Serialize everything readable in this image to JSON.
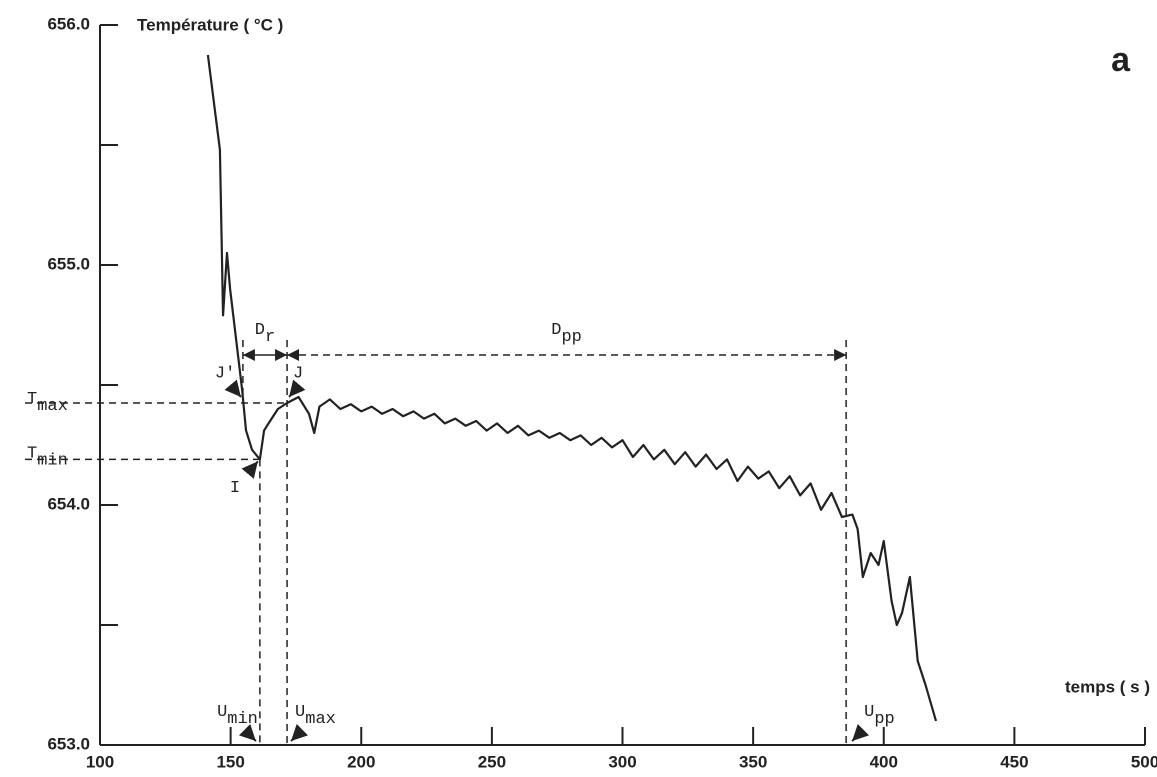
{
  "chart_data": {
    "type": "line",
    "title": "a",
    "y_label": "Température ( °C )",
    "x_label": "temps ( s )",
    "xlim": [
      100,
      500
    ],
    "xticks": [
      100,
      150,
      200,
      250,
      300,
      350,
      400,
      450,
      500
    ],
    "ylim": [
      653.0,
      656.0
    ],
    "yticks": [
      {
        "value": 653.0,
        "label": "653.0"
      },
      {
        "value": 654.0,
        "label": "654.0"
      },
      {
        "value": 655.0,
        "label": "655.0"
      },
      {
        "value": 656.0,
        "label": "656.0"
      }
    ],
    "yminor_ticks": [
      653.5,
      654.5,
      655.5
    ],
    "color": "#222222",
    "x": [
      141.3,
      145.9,
      147.1,
      148.6,
      149.8,
      152.1,
      154.4,
      155.9,
      158.2,
      161.2,
      162.8,
      165.1,
      168.1,
      171.6,
      176,
      180,
      182,
      184,
      188,
      192,
      196,
      200,
      204,
      208,
      212,
      216,
      220,
      224,
      228,
      232,
      236,
      240,
      244,
      248,
      252,
      256,
      260,
      264,
      268,
      272,
      276,
      280,
      284,
      288,
      292,
      296,
      300,
      304,
      308,
      312,
      316,
      320,
      324,
      328,
      332,
      336,
      340,
      344,
      348,
      352,
      356,
      360,
      364,
      368,
      372,
      376,
      380,
      384,
      388,
      390,
      392,
      395,
      398,
      400,
      403,
      405,
      407,
      410,
      413,
      416,
      420
    ],
    "values": [
      655.875,
      655.48,
      654.79,
      655.05,
      654.9,
      654.69,
      654.48,
      654.31,
      654.23,
      654.19,
      654.31,
      654.35,
      654.4,
      654.425,
      654.45,
      654.38,
      654.3,
      654.41,
      654.44,
      654.4,
      654.42,
      654.39,
      654.41,
      654.38,
      654.4,
      654.37,
      654.39,
      654.36,
      654.38,
      654.34,
      654.36,
      654.33,
      654.35,
      654.31,
      654.34,
      654.3,
      654.33,
      654.29,
      654.31,
      654.28,
      654.3,
      654.27,
      654.29,
      654.25,
      654.28,
      654.24,
      654.27,
      654.2,
      654.25,
      654.19,
      654.23,
      654.17,
      654.22,
      654.16,
      654.21,
      654.15,
      654.19,
      654.1,
      654.16,
      654.11,
      654.14,
      654.07,
      654.12,
      654.04,
      654.09,
      653.98,
      654.05,
      653.95,
      653.96,
      653.9,
      653.7,
      653.8,
      653.75,
      653.85,
      653.6,
      653.5,
      653.55,
      653.7,
      653.35,
      653.25,
      653.1
    ],
    "markers": {
      "t_max": 654.425,
      "t_min": 654.19,
      "u_min": 161.2,
      "u_max": 171.6,
      "u_pp": 385.6,
      "j_prime": 154.7
    },
    "annotations": {
      "t_max": {
        "main": "T",
        "sub": "max"
      },
      "t_min": {
        "main": "T",
        "sub": "min"
      },
      "u_min": {
        "main": "U",
        "sub": "min"
      },
      "u_max": {
        "main": "U",
        "sub": "max"
      },
      "u_pp": {
        "main": "U",
        "sub": "pp"
      },
      "d_r": {
        "main": "D",
        "sub": "r"
      },
      "d_pp": {
        "main": "D",
        "sub": "pp"
      },
      "i": "I",
      "j": "J",
      "j_prime": "J'"
    }
  }
}
